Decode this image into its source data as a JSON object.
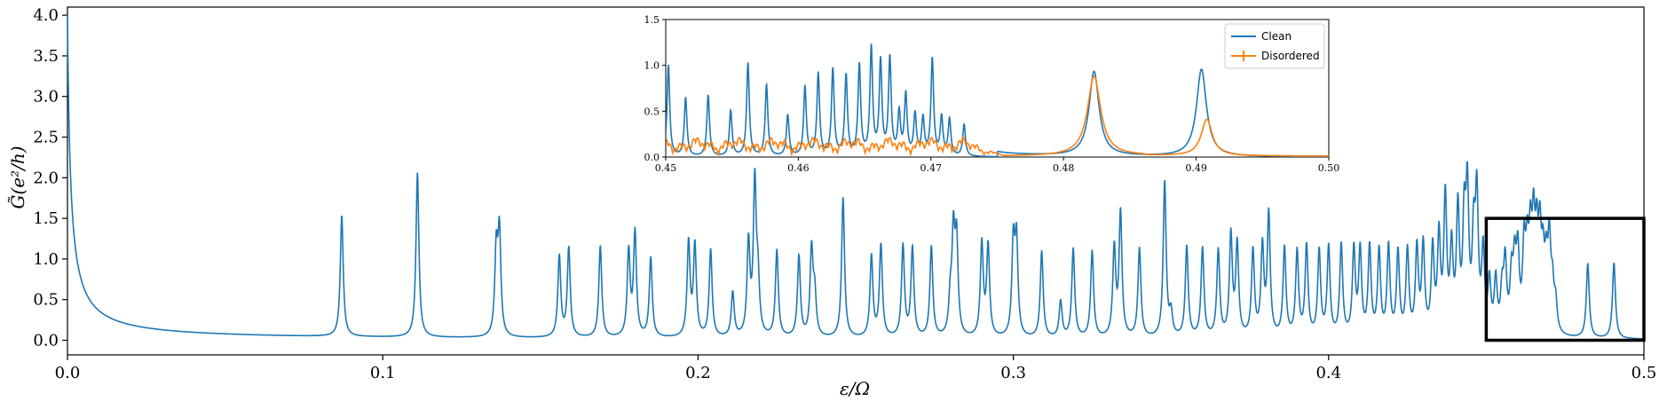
{
  "chart_data": [
    {
      "type": "line",
      "xlabel": "ε/Ω",
      "ylabel": "G̃(e²/h)",
      "xlim": [
        0.0,
        0.5
      ],
      "ylim": [
        -0.18,
        4.1
      ],
      "xticks": [
        "0.0",
        "0.1",
        "0.2",
        "0.3",
        "0.4",
        "0.5"
      ],
      "yticks": [
        "0.0",
        "0.5",
        "1.0",
        "1.5",
        "2.0",
        "2.5",
        "3.0",
        "3.5",
        "4.0"
      ],
      "xtick_values": [
        0.0,
        0.1,
        0.2,
        0.3,
        0.4,
        0.5
      ],
      "ytick_values": [
        0.0,
        0.5,
        1.0,
        1.5,
        2.0,
        2.5,
        3.0,
        3.5,
        4.0
      ],
      "grid": false,
      "series": [
        {
          "color": "#1f77b4",
          "peaks": [
            [
              0.087,
              1.5
            ],
            [
              0.111,
              2.03
            ],
            [
              0.136,
              1.03
            ],
            [
              0.137,
              1.25
            ],
            [
              0.156,
              1.0
            ],
            [
              0.159,
              1.1
            ],
            [
              0.169,
              1.13
            ],
            [
              0.178,
              1.05
            ],
            [
              0.18,
              1.28
            ],
            [
              0.185,
              0.98
            ],
            [
              0.197,
              1.16
            ],
            [
              0.199,
              1.12
            ],
            [
              0.204,
              1.08
            ],
            [
              0.211,
              0.55
            ],
            [
              0.216,
              1.14
            ],
            [
              0.218,
              1.87
            ],
            [
              0.219,
              0.62
            ],
            [
              0.225,
              1.07
            ],
            [
              0.232,
              1.0
            ],
            [
              0.236,
              1.07
            ],
            [
              0.237,
              0.5
            ],
            [
              0.246,
              1.73
            ],
            [
              0.255,
              1.0
            ],
            [
              0.258,
              1.14
            ],
            [
              0.265,
              1.13
            ],
            [
              0.268,
              1.1
            ],
            [
              0.274,
              1.12
            ],
            [
              0.28,
              0.42
            ],
            [
              0.281,
              1.2
            ],
            [
              0.282,
              1.14
            ],
            [
              0.29,
              1.15
            ],
            [
              0.292,
              1.12
            ],
            [
              0.3,
              1.13
            ],
            [
              0.301,
              1.15
            ],
            [
              0.309,
              1.07
            ],
            [
              0.315,
              0.45
            ],
            [
              0.319,
              1.1
            ],
            [
              0.325,
              1.07
            ],
            [
              0.332,
              1.09
            ],
            [
              0.334,
              1.53
            ],
            [
              0.34,
              1.1
            ],
            [
              0.348,
              1.93
            ],
            [
              0.35,
              0.28
            ],
            [
              0.355,
              1.12
            ],
            [
              0.36,
              1.1
            ],
            [
              0.365,
              1.07
            ],
            [
              0.369,
              1.25
            ],
            [
              0.371,
              1.13
            ],
            [
              0.376,
              1.06
            ],
            [
              0.379,
              1.09
            ],
            [
              0.381,
              1.5
            ],
            [
              0.386,
              1.1
            ],
            [
              0.39,
              1.05
            ],
            [
              0.393,
              1.12
            ],
            [
              0.397,
              1.06
            ],
            [
              0.4,
              1.1
            ],
            [
              0.404,
              1.13
            ],
            [
              0.408,
              1.07
            ],
            [
              0.41,
              1.05
            ],
            [
              0.413,
              1.1
            ],
            [
              0.416,
              1.05
            ],
            [
              0.419,
              1.1
            ],
            [
              0.422,
              1.03
            ],
            [
              0.425,
              1.05
            ],
            [
              0.428,
              1.07
            ],
            [
              0.43,
              1.1
            ],
            [
              0.433,
              1.05
            ],
            [
              0.435,
              1.18
            ],
            [
              0.437,
              1.67
            ],
            [
              0.439,
              1.02
            ],
            [
              0.441,
              1.5
            ],
            [
              0.443,
              1.3
            ],
            [
              0.444,
              1.65
            ],
            [
              0.446,
              1.1
            ],
            [
              0.447,
              1.62
            ],
            [
              0.449,
              1.0
            ],
            [
              0.451,
              0.62
            ],
            [
              0.453,
              0.65
            ],
            [
              0.455,
              0.5
            ],
            [
              0.456,
              0.85
            ],
            [
              0.458,
              0.65
            ],
            [
              0.459,
              0.77
            ],
            [
              0.46,
              0.92
            ],
            [
              0.462,
              0.98
            ],
            [
              0.463,
              0.85
            ],
            [
              0.464,
              1.0
            ],
            [
              0.465,
              1.15
            ],
            [
              0.466,
              0.98
            ],
            [
              0.467,
              1.05
            ],
            [
              0.468,
              0.75
            ],
            [
              0.469,
              0.7
            ],
            [
              0.47,
              1.05
            ],
            [
              0.471,
              0.5
            ],
            [
              0.472,
              0.35
            ],
            [
              0.4822,
              0.92
            ],
            [
              0.4905,
              0.94
            ]
          ]
        }
      ],
      "highlight_box": {
        "x": [
          0.45,
          0.5
        ],
        "y": [
          0.0,
          1.5
        ]
      }
    },
    {
      "type": "line",
      "xlim": [
        0.45,
        0.5
      ],
      "ylim": [
        0.0,
        1.5
      ],
      "xticks": [
        "0.45",
        "0.46",
        "0.47",
        "0.48",
        "0.49",
        "0.50"
      ],
      "yticks": [
        "0.0",
        "0.5",
        "1.0",
        "1.5"
      ],
      "xtick_values": [
        0.45,
        0.46,
        0.47,
        0.48,
        0.49,
        0.5
      ],
      "ytick_values": [
        0.0,
        0.5,
        1.0,
        1.5
      ],
      "legend": "top-right",
      "series": [
        {
          "name": "Clean",
          "color": "#1f77b4",
          "peaks": [
            [
              0.4502,
              1.0
            ],
            [
              0.4515,
              0.64
            ],
            [
              0.4532,
              0.67
            ],
            [
              0.4549,
              0.5
            ],
            [
              0.4562,
              1.02
            ],
            [
              0.4576,
              0.78
            ],
            [
              0.4592,
              0.45
            ],
            [
              0.4605,
              0.76
            ],
            [
              0.4615,
              0.9
            ],
            [
              0.4626,
              0.95
            ],
            [
              0.4636,
              0.88
            ],
            [
              0.4646,
              0.99
            ],
            [
              0.4655,
              1.17
            ],
            [
              0.4662,
              1.02
            ],
            [
              0.4669,
              1.06
            ],
            [
              0.4676,
              0.46
            ],
            [
              0.4681,
              0.66
            ],
            [
              0.4688,
              0.45
            ],
            [
              0.4694,
              0.4
            ],
            [
              0.4701,
              1.06
            ],
            [
              0.4708,
              0.42
            ],
            [
              0.4714,
              0.4
            ],
            [
              0.4725,
              0.35
            ],
            [
              0.4823,
              0.92
            ],
            [
              0.4904,
              0.95
            ]
          ]
        },
        {
          "name": "Disordered",
          "color": "#ff7f0e",
          "peaks": [
            [
              0.4823,
              0.87
            ],
            [
              0.4908,
              0.4
            ]
          ],
          "noise_range": [
            0.45,
            0.4725
          ],
          "noise_level": 0.15
        }
      ]
    }
  ]
}
